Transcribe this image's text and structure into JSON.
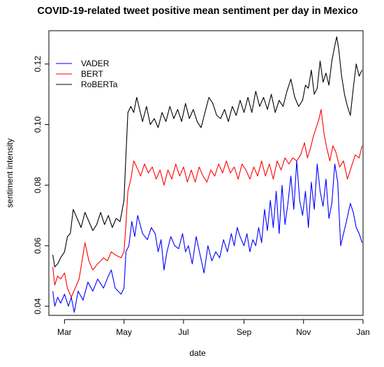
{
  "chart_data": {
    "type": "line",
    "title": "COVID-19-related tweet positive mean sentiment per day in Mexico",
    "xlabel": "date",
    "ylabel": "sentiment intensity",
    "x_range": [
      "2020-02-14",
      "2021-01-01"
    ],
    "ylim": [
      0.037,
      0.131
    ],
    "x_ticks": [
      {
        "date": "2020-03-01",
        "label": "Mar"
      },
      {
        "date": "2020-05-01",
        "label": "May"
      },
      {
        "date": "2020-07-01",
        "label": "Jul"
      },
      {
        "date": "2020-09-01",
        "label": "Sep"
      },
      {
        "date": "2020-11-01",
        "label": "Nov"
      },
      {
        "date": "2021-01-01",
        "label": "Jan"
      }
    ],
    "y_ticks": [
      {
        "value": 0.04,
        "label": "0.04"
      },
      {
        "value": 0.06,
        "label": "0.06"
      },
      {
        "value": 0.08,
        "label": "0.08"
      },
      {
        "value": 0.1,
        "label": "0.10"
      },
      {
        "value": 0.12,
        "label": "0.12"
      }
    ],
    "grid": false,
    "legend_position": "top-left",
    "series": [
      {
        "name": "VADER",
        "color": "#0000ff",
        "points": [
          [
            "2020-02-18",
            0.045
          ],
          [
            "2020-02-20",
            0.04
          ],
          [
            "2020-02-23",
            0.043
          ],
          [
            "2020-02-26",
            0.041
          ],
          [
            "2020-03-01",
            0.044
          ],
          [
            "2020-03-05",
            0.04
          ],
          [
            "2020-03-08",
            0.043
          ],
          [
            "2020-03-11",
            0.038
          ],
          [
            "2020-03-15",
            0.045
          ],
          [
            "2020-03-20",
            0.042
          ],
          [
            "2020-03-25",
            0.048
          ],
          [
            "2020-03-30",
            0.045
          ],
          [
            "2020-04-04",
            0.049
          ],
          [
            "2020-04-10",
            0.046
          ],
          [
            "2020-04-15",
            0.05
          ],
          [
            "2020-04-18",
            0.052
          ],
          [
            "2020-04-22",
            0.046
          ],
          [
            "2020-04-28",
            0.044
          ],
          [
            "2020-05-01",
            0.046
          ],
          [
            "2020-05-03",
            0.058
          ],
          [
            "2020-05-06",
            0.06
          ],
          [
            "2020-05-09",
            0.068
          ],
          [
            "2020-05-12",
            0.063
          ],
          [
            "2020-05-15",
            0.07
          ],
          [
            "2020-05-20",
            0.064
          ],
          [
            "2020-05-25",
            0.062
          ],
          [
            "2020-05-29",
            0.066
          ],
          [
            "2020-06-02",
            0.064
          ],
          [
            "2020-06-05",
            0.058
          ],
          [
            "2020-06-08",
            0.062
          ],
          [
            "2020-06-11",
            0.052
          ],
          [
            "2020-06-14",
            0.058
          ],
          [
            "2020-06-18",
            0.063
          ],
          [
            "2020-06-22",
            0.06
          ],
          [
            "2020-06-26",
            0.059
          ],
          [
            "2020-06-30",
            0.064
          ],
          [
            "2020-07-03",
            0.058
          ],
          [
            "2020-07-06",
            0.06
          ],
          [
            "2020-07-10",
            0.054
          ],
          [
            "2020-07-14",
            0.063
          ],
          [
            "2020-07-18",
            0.057
          ],
          [
            "2020-07-22",
            0.051
          ],
          [
            "2020-07-26",
            0.06
          ],
          [
            "2020-07-30",
            0.055
          ],
          [
            "2020-08-03",
            0.058
          ],
          [
            "2020-08-07",
            0.056
          ],
          [
            "2020-08-11",
            0.062
          ],
          [
            "2020-08-15",
            0.058
          ],
          [
            "2020-08-19",
            0.064
          ],
          [
            "2020-08-22",
            0.06
          ],
          [
            "2020-08-25",
            0.066
          ],
          [
            "2020-08-28",
            0.063
          ],
          [
            "2020-09-01",
            0.06
          ],
          [
            "2020-09-04",
            0.064
          ],
          [
            "2020-09-07",
            0.058
          ],
          [
            "2020-09-10",
            0.062
          ],
          [
            "2020-09-13",
            0.06
          ],
          [
            "2020-09-16",
            0.066
          ],
          [
            "2020-09-19",
            0.061
          ],
          [
            "2020-09-22",
            0.072
          ],
          [
            "2020-09-25",
            0.065
          ],
          [
            "2020-09-28",
            0.075
          ],
          [
            "2020-10-01",
            0.066
          ],
          [
            "2020-10-04",
            0.078
          ],
          [
            "2020-10-07",
            0.064
          ],
          [
            "2020-10-10",
            0.08
          ],
          [
            "2020-10-13",
            0.067
          ],
          [
            "2020-10-16",
            0.074
          ],
          [
            "2020-10-19",
            0.083
          ],
          [
            "2020-10-22",
            0.072
          ],
          [
            "2020-10-25",
            0.088
          ],
          [
            "2020-10-28",
            0.075
          ],
          [
            "2020-10-31",
            0.07
          ],
          [
            "2020-11-03",
            0.078
          ],
          [
            "2020-11-06",
            0.066
          ],
          [
            "2020-11-09",
            0.081
          ],
          [
            "2020-11-12",
            0.072
          ],
          [
            "2020-11-15",
            0.087
          ],
          [
            "2020-11-18",
            0.078
          ],
          [
            "2020-11-21",
            0.073
          ],
          [
            "2020-11-24",
            0.082
          ],
          [
            "2020-11-27",
            0.069
          ],
          [
            "2020-11-30",
            0.074
          ],
          [
            "2020-12-03",
            0.087
          ],
          [
            "2020-12-06",
            0.081
          ],
          [
            "2020-12-09",
            0.06
          ],
          [
            "2020-12-12",
            0.064
          ],
          [
            "2020-12-15",
            0.068
          ],
          [
            "2020-12-19",
            0.074
          ],
          [
            "2020-12-22",
            0.071
          ],
          [
            "2020-12-25",
            0.066
          ],
          [
            "2020-12-28",
            0.064
          ],
          [
            "2020-12-31",
            0.061
          ]
        ]
      },
      {
        "name": "BERT",
        "color": "#ff0000",
        "points": [
          [
            "2020-02-18",
            0.053
          ],
          [
            "2020-02-20",
            0.047
          ],
          [
            "2020-02-23",
            0.05
          ],
          [
            "2020-02-26",
            0.049
          ],
          [
            "2020-03-01",
            0.051
          ],
          [
            "2020-03-04",
            0.046
          ],
          [
            "2020-03-08",
            0.043
          ],
          [
            "2020-03-12",
            0.046
          ],
          [
            "2020-03-16",
            0.049
          ],
          [
            "2020-03-19",
            0.055
          ],
          [
            "2020-03-22",
            0.061
          ],
          [
            "2020-03-26",
            0.055
          ],
          [
            "2020-03-30",
            0.052
          ],
          [
            "2020-04-04",
            0.054
          ],
          [
            "2020-04-10",
            0.056
          ],
          [
            "2020-04-14",
            0.055
          ],
          [
            "2020-04-18",
            0.058
          ],
          [
            "2020-04-22",
            0.057
          ],
          [
            "2020-04-28",
            0.056
          ],
          [
            "2020-05-01",
            0.058
          ],
          [
            "2020-05-03",
            0.067
          ],
          [
            "2020-05-05",
            0.078
          ],
          [
            "2020-05-08",
            0.082
          ],
          [
            "2020-05-11",
            0.088
          ],
          [
            "2020-05-14",
            0.086
          ],
          [
            "2020-05-18",
            0.083
          ],
          [
            "2020-05-22",
            0.087
          ],
          [
            "2020-05-26",
            0.084
          ],
          [
            "2020-05-30",
            0.086
          ],
          [
            "2020-06-03",
            0.082
          ],
          [
            "2020-06-07",
            0.085
          ],
          [
            "2020-06-11",
            0.08
          ],
          [
            "2020-06-15",
            0.085
          ],
          [
            "2020-06-19",
            0.082
          ],
          [
            "2020-06-23",
            0.087
          ],
          [
            "2020-06-27",
            0.083
          ],
          [
            "2020-07-01",
            0.086
          ],
          [
            "2020-07-05",
            0.081
          ],
          [
            "2020-07-09",
            0.085
          ],
          [
            "2020-07-13",
            0.081
          ],
          [
            "2020-07-17",
            0.086
          ],
          [
            "2020-07-21",
            0.083
          ],
          [
            "2020-07-25",
            0.081
          ],
          [
            "2020-07-29",
            0.085
          ],
          [
            "2020-08-02",
            0.083
          ],
          [
            "2020-08-06",
            0.087
          ],
          [
            "2020-08-10",
            0.084
          ],
          [
            "2020-08-14",
            0.088
          ],
          [
            "2020-08-18",
            0.084
          ],
          [
            "2020-08-22",
            0.086
          ],
          [
            "2020-08-26",
            0.082
          ],
          [
            "2020-08-30",
            0.087
          ],
          [
            "2020-09-03",
            0.085
          ],
          [
            "2020-09-07",
            0.082
          ],
          [
            "2020-09-11",
            0.086
          ],
          [
            "2020-09-15",
            0.083
          ],
          [
            "2020-09-19",
            0.088
          ],
          [
            "2020-09-23",
            0.083
          ],
          [
            "2020-09-27",
            0.087
          ],
          [
            "2020-10-01",
            0.082
          ],
          [
            "2020-10-05",
            0.088
          ],
          [
            "2020-10-09",
            0.085
          ],
          [
            "2020-10-13",
            0.089
          ],
          [
            "2020-10-17",
            0.087
          ],
          [
            "2020-10-21",
            0.089
          ],
          [
            "2020-10-25",
            0.088
          ],
          [
            "2020-10-29",
            0.09
          ],
          [
            "2020-11-02",
            0.094
          ],
          [
            "2020-11-05",
            0.089
          ],
          [
            "2020-11-08",
            0.092
          ],
          [
            "2020-11-11",
            0.096
          ],
          [
            "2020-11-14",
            0.099
          ],
          [
            "2020-11-17",
            0.102
          ],
          [
            "2020-11-19",
            0.105
          ],
          [
            "2020-11-22",
            0.097
          ],
          [
            "2020-11-25",
            0.092
          ],
          [
            "2020-11-28",
            0.088
          ],
          [
            "2020-12-01",
            0.093
          ],
          [
            "2020-12-04",
            0.091
          ],
          [
            "2020-12-08",
            0.086
          ],
          [
            "2020-12-12",
            0.088
          ],
          [
            "2020-12-16",
            0.082
          ],
          [
            "2020-12-20",
            0.086
          ],
          [
            "2020-12-24",
            0.09
          ],
          [
            "2020-12-28",
            0.089
          ],
          [
            "2020-12-31",
            0.093
          ]
        ]
      },
      {
        "name": "RoBERTa",
        "color": "#000000",
        "points": [
          [
            "2020-02-18",
            0.057
          ],
          [
            "2020-02-20",
            0.053
          ],
          [
            "2020-02-23",
            0.054
          ],
          [
            "2020-02-26",
            0.056
          ],
          [
            "2020-03-01",
            0.058
          ],
          [
            "2020-03-04",
            0.063
          ],
          [
            "2020-03-07",
            0.064
          ],
          [
            "2020-03-10",
            0.072
          ],
          [
            "2020-03-14",
            0.069
          ],
          [
            "2020-03-18",
            0.066
          ],
          [
            "2020-03-22",
            0.071
          ],
          [
            "2020-03-26",
            0.068
          ],
          [
            "2020-03-30",
            0.065
          ],
          [
            "2020-04-03",
            0.067
          ],
          [
            "2020-04-07",
            0.071
          ],
          [
            "2020-04-11",
            0.067
          ],
          [
            "2020-04-15",
            0.07
          ],
          [
            "2020-04-19",
            0.066
          ],
          [
            "2020-04-23",
            0.069
          ],
          [
            "2020-04-27",
            0.068
          ],
          [
            "2020-05-01",
            0.075
          ],
          [
            "2020-05-03",
            0.09
          ],
          [
            "2020-05-05",
            0.104
          ],
          [
            "2020-05-08",
            0.106
          ],
          [
            "2020-05-11",
            0.104
          ],
          [
            "2020-05-14",
            0.109
          ],
          [
            "2020-05-17",
            0.105
          ],
          [
            "2020-05-20",
            0.101
          ],
          [
            "2020-05-24",
            0.106
          ],
          [
            "2020-05-28",
            0.1
          ],
          [
            "2020-06-01",
            0.102
          ],
          [
            "2020-06-05",
            0.099
          ],
          [
            "2020-06-09",
            0.104
          ],
          [
            "2020-06-13",
            0.101
          ],
          [
            "2020-06-17",
            0.106
          ],
          [
            "2020-06-21",
            0.102
          ],
          [
            "2020-06-25",
            0.105
          ],
          [
            "2020-06-29",
            0.101
          ],
          [
            "2020-07-03",
            0.107
          ],
          [
            "2020-07-07",
            0.102
          ],
          [
            "2020-07-11",
            0.105
          ],
          [
            "2020-07-15",
            0.101
          ],
          [
            "2020-07-19",
            0.099
          ],
          [
            "2020-07-23",
            0.104
          ],
          [
            "2020-07-27",
            0.109
          ],
          [
            "2020-07-31",
            0.107
          ],
          [
            "2020-08-04",
            0.103
          ],
          [
            "2020-08-08",
            0.102
          ],
          [
            "2020-08-12",
            0.105
          ],
          [
            "2020-08-16",
            0.101
          ],
          [
            "2020-08-20",
            0.106
          ],
          [
            "2020-08-24",
            0.103
          ],
          [
            "2020-08-28",
            0.108
          ],
          [
            "2020-09-01",
            0.104
          ],
          [
            "2020-09-05",
            0.109
          ],
          [
            "2020-09-09",
            0.104
          ],
          [
            "2020-09-13",
            0.111
          ],
          [
            "2020-09-17",
            0.106
          ],
          [
            "2020-09-21",
            0.109
          ],
          [
            "2020-09-25",
            0.105
          ],
          [
            "2020-09-29",
            0.11
          ],
          [
            "2020-10-03",
            0.104
          ],
          [
            "2020-10-07",
            0.108
          ],
          [
            "2020-10-11",
            0.106
          ],
          [
            "2020-10-15",
            0.111
          ],
          [
            "2020-10-19",
            0.115
          ],
          [
            "2020-10-23",
            0.109
          ],
          [
            "2020-10-27",
            0.106
          ],
          [
            "2020-10-31",
            0.108
          ],
          [
            "2020-11-03",
            0.113
          ],
          [
            "2020-11-06",
            0.112
          ],
          [
            "2020-11-09",
            0.118
          ],
          [
            "2020-11-12",
            0.11
          ],
          [
            "2020-11-15",
            0.112
          ],
          [
            "2020-11-18",
            0.121
          ],
          [
            "2020-11-21",
            0.114
          ],
          [
            "2020-11-24",
            0.117
          ],
          [
            "2020-11-27",
            0.113
          ],
          [
            "2020-11-30",
            0.121
          ],
          [
            "2020-12-03",
            0.126
          ],
          [
            "2020-12-05",
            0.129
          ],
          [
            "2020-12-07",
            0.125
          ],
          [
            "2020-12-10",
            0.116
          ],
          [
            "2020-12-13",
            0.11
          ],
          [
            "2020-12-16",
            0.106
          ],
          [
            "2020-12-19",
            0.103
          ],
          [
            "2020-12-22",
            0.112
          ],
          [
            "2020-12-25",
            0.12
          ],
          [
            "2020-12-28",
            0.116
          ],
          [
            "2020-12-31",
            0.118
          ]
        ]
      }
    ]
  }
}
